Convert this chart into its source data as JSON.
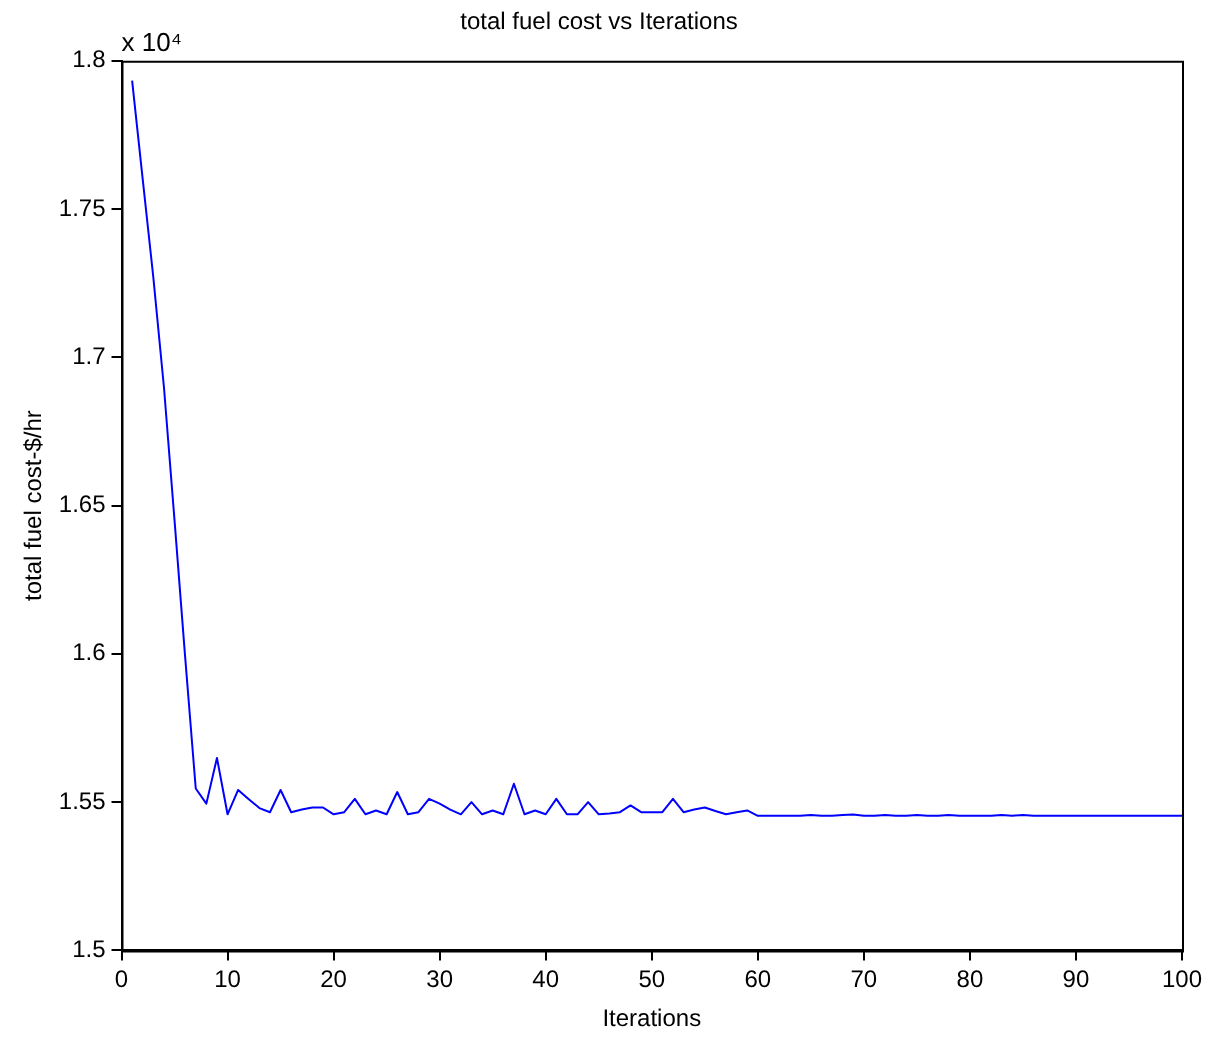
{
  "chart_data": {
    "type": "line",
    "title": "total fuel cost vs Iterations",
    "xlabel": "Iterations",
    "ylabel": "total fuel cost-$/hr",
    "annotations": [
      "x 10⁴"
    ],
    "x": [
      1,
      2,
      3,
      4,
      5,
      6,
      7,
      8,
      9,
      10,
      11,
      12,
      13,
      14,
      15,
      16,
      17,
      18,
      19,
      20,
      21,
      22,
      23,
      24,
      25,
      26,
      27,
      28,
      29,
      30,
      31,
      32,
      33,
      34,
      35,
      36,
      37,
      38,
      39,
      40,
      41,
      42,
      43,
      44,
      45,
      46,
      47,
      48,
      49,
      50,
      51,
      52,
      53,
      54,
      55,
      56,
      57,
      58,
      59,
      60,
      61,
      62,
      63,
      64,
      65,
      66,
      67,
      68,
      69,
      70,
      71,
      72,
      73,
      74,
      75,
      76,
      77,
      78,
      79,
      80,
      81,
      82,
      83,
      84,
      85,
      86,
      87,
      88,
      89,
      90,
      91,
      92,
      93,
      94,
      95,
      96,
      97,
      98,
      99,
      100
    ],
    "series": [
      {
        "color": "#0000ff",
        "values": [
          1.7933,
          1.76,
          1.727,
          1.69,
          1.645,
          1.599,
          1.5546,
          1.5495,
          1.5649,
          1.5459,
          1.5541,
          1.551,
          1.548,
          1.5466,
          1.5541,
          1.5466,
          1.5475,
          1.5482,
          1.5482,
          1.5459,
          1.5466,
          1.5511,
          1.5459,
          1.5472,
          1.5459,
          1.5534,
          1.5459,
          1.5466,
          1.5511,
          1.5495,
          1.5475,
          1.5459,
          1.55,
          1.5459,
          1.5472,
          1.5459,
          1.5562,
          1.5459,
          1.5472,
          1.5459,
          1.5511,
          1.5459,
          1.5459,
          1.55,
          1.5459,
          1.5462,
          1.5466,
          1.5489,
          1.5466,
          1.5466,
          1.5466,
          1.5511,
          1.5466,
          1.5475,
          1.5482,
          1.547,
          1.5459,
          1.5466,
          1.5472,
          1.5454,
          1.5454,
          1.5454,
          1.5454,
          1.5454,
          1.5457,
          1.5454,
          1.5454,
          1.5457,
          1.5458,
          1.5454,
          1.5454,
          1.5457,
          1.5454,
          1.5454,
          1.5457,
          1.5454,
          1.5454,
          1.5457,
          1.5454,
          1.5454,
          1.5454,
          1.5454,
          1.5457,
          1.5454,
          1.5457,
          1.5454,
          1.5454,
          1.5454,
          1.5454,
          1.5454,
          1.5454,
          1.5454,
          1.5454,
          1.5454,
          1.5454,
          1.5454,
          1.5454,
          1.5454,
          1.5454,
          1.5454
        ]
      }
    ],
    "xlim": [
      0,
      100
    ],
    "xticks": [
      0,
      10,
      20,
      30,
      40,
      50,
      60,
      70,
      80,
      90,
      100
    ],
    "ylim": [
      1.5,
      1.8
    ],
    "yticks": [
      1.5,
      1.55,
      1.6,
      1.65,
      1.7,
      1.75,
      1.8
    ],
    "grid": false,
    "legend": false,
    "marker": "none",
    "line_style": "solid"
  }
}
